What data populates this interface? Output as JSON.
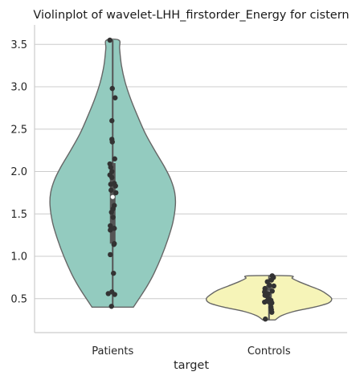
{
  "chart_data": {
    "type": "violin",
    "title": "Violinplot of wavelet-LHH_firstorder_Energy for cistern",
    "xlabel": "target",
    "ylabel": "",
    "categories": [
      "Patients",
      "Controls"
    ],
    "ylim": [
      0.1,
      3.73
    ],
    "yticks": [
      0.5,
      1.0,
      1.5,
      2.0,
      2.5,
      3.0,
      3.5
    ],
    "ytick_labels": [
      "0.5",
      "1.0",
      "1.5",
      "2.0",
      "2.5",
      "3.0",
      "3.5"
    ],
    "grid": "horizontal",
    "colors": {
      "Patients": "#93cbbf",
      "Controls": "#f6f4b8",
      "outline": "#666666",
      "points": "#333333",
      "grid": "#cccccc",
      "axes": "#cccccc"
    },
    "series": [
      {
        "name": "Patients",
        "range": [
          0.4,
          3.55
        ],
        "quartiles": [
          1.15,
          1.7,
          2.1
        ],
        "median": 1.7,
        "density_profile": [
          [
            0.4,
            0.33
          ],
          [
            0.5,
            0.42
          ],
          [
            0.65,
            0.55
          ],
          [
            0.8,
            0.66
          ],
          [
            1.0,
            0.78
          ],
          [
            1.2,
            0.88
          ],
          [
            1.4,
            0.96
          ],
          [
            1.6,
            1.0
          ],
          [
            1.75,
            0.99
          ],
          [
            1.9,
            0.93
          ],
          [
            2.05,
            0.83
          ],
          [
            2.25,
            0.67
          ],
          [
            2.45,
            0.52
          ],
          [
            2.65,
            0.4
          ],
          [
            2.85,
            0.29
          ],
          [
            3.05,
            0.2
          ],
          [
            3.25,
            0.14
          ],
          [
            3.45,
            0.11
          ],
          [
            3.55,
            0.1
          ]
        ],
        "points": [
          3.55,
          2.98,
          2.87,
          2.6,
          2.38,
          2.35,
          2.15,
          2.09,
          2.05,
          2.0,
          1.96,
          1.93,
          1.86,
          1.85,
          1.83,
          1.78,
          1.75,
          1.6,
          1.56,
          1.52,
          1.46,
          1.36,
          1.33,
          1.31,
          1.15,
          1.14,
          1.02,
          0.8,
          0.58,
          0.56,
          0.55,
          0.41
        ],
        "jitter": [
          -0.07,
          -0.01,
          0.06,
          -0.02,
          -0.02,
          -0.01,
          0.05,
          -0.07,
          -0.05,
          -0.02,
          -0.07,
          -0.02,
          0.04,
          -0.05,
          0.07,
          -0.04,
          0.08,
          0.04,
          0.01,
          -0.03,
          0.01,
          -0.06,
          0.04,
          -0.06,
          0.04,
          0.03,
          -0.06,
          0.02,
          -0.02,
          -0.11,
          0.05,
          -0.03
        ]
      },
      {
        "name": "Controls",
        "range": [
          0.25,
          0.77
        ],
        "quartiles": [
          0.45,
          0.57,
          0.66
        ],
        "median": 0.57,
        "density_profile": [
          [
            0.25,
            0.1
          ],
          [
            0.3,
            0.2
          ],
          [
            0.35,
            0.4
          ],
          [
            0.4,
            0.72
          ],
          [
            0.45,
            0.95
          ],
          [
            0.5,
            1.0
          ],
          [
            0.55,
            0.93
          ],
          [
            0.6,
            0.82
          ],
          [
            0.65,
            0.65
          ],
          [
            0.7,
            0.48
          ],
          [
            0.74,
            0.37
          ],
          [
            0.77,
            0.33
          ]
        ],
        "points": [
          0.77,
          0.75,
          0.72,
          0.7,
          0.66,
          0.65,
          0.62,
          0.59,
          0.58,
          0.56,
          0.54,
          0.53,
          0.5,
          0.48,
          0.47,
          0.46,
          0.46,
          0.45,
          0.45,
          0.4,
          0.37,
          0.34,
          0.26
        ],
        "jitter": [
          0.08,
          0.11,
          0.06,
          -0.04,
          0.01,
          0.12,
          -0.1,
          0.08,
          -0.11,
          -0.02,
          -0.1,
          -0.05,
          -0.01,
          0.05,
          -0.06,
          0.01,
          -0.11,
          0.04,
          0.07,
          0.05,
          0.06,
          0.07,
          -0.09
        ]
      }
    ]
  }
}
